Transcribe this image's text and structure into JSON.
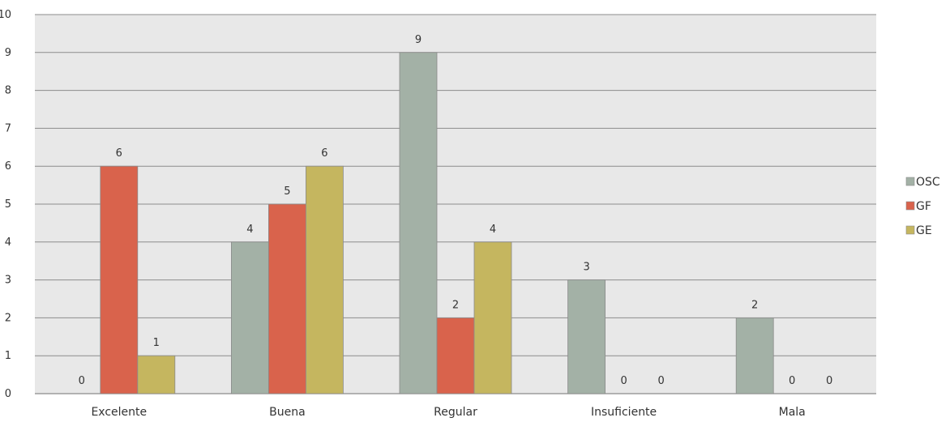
{
  "chart_data": {
    "type": "bar",
    "categories": [
      "Excelente",
      "Buena",
      "Regular",
      "Insuficiente",
      "Mala"
    ],
    "series": [
      {
        "name": "OSC",
        "values": [
          0,
          4,
          9,
          3,
          2
        ],
        "color": "#a3b1a6"
      },
      {
        "name": "GF",
        "values": [
          6,
          5,
          2,
          0,
          0
        ],
        "color": "#d9634c"
      },
      {
        "name": "GE",
        "values": [
          1,
          6,
          4,
          0,
          0
        ],
        "color": "#c5b65f"
      }
    ],
    "ylim": [
      0,
      10
    ],
    "yticks": [
      0,
      1,
      2,
      3,
      4,
      5,
      6,
      7,
      8,
      9,
      10
    ],
    "grid": true,
    "legend": "right",
    "plot_background": "#e8e8e8",
    "grid_color": "#8c8c8c"
  }
}
